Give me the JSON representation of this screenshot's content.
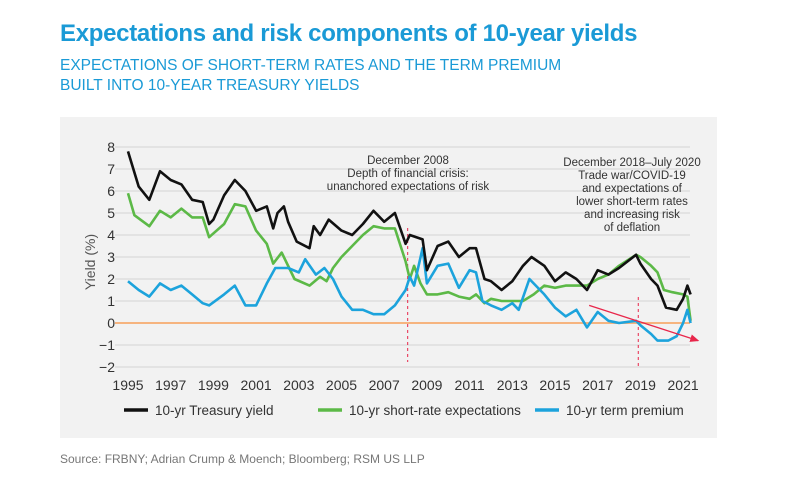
{
  "title": "Expectations and risk components of 10-year yields",
  "subtitle_line1": "EXPECTATIONS OF SHORT-TERM RATES AND THE TERM PREMIUM",
  "subtitle_line2": "BUILT INTO 10-YEAR TREASURY YIELDS",
  "source": "Source: FRBNY; Adrian Crump & Moench; Bloomberg; RSM US LLP",
  "chart_data": {
    "type": "line",
    "ylabel": "Yield (%)",
    "xlabel": "",
    "xlim": [
      1995,
      2021.4
    ],
    "ylim": [
      -2,
      8
    ],
    "grid": true,
    "legend_position": "bottom",
    "x_ticks": [
      "1995",
      "1997",
      "1999",
      "2001",
      "2003",
      "2005",
      "2007",
      "2009",
      "2011",
      "2013",
      "2015",
      "2017",
      "2019",
      "2021"
    ],
    "y_ticks": [
      "8",
      "7",
      "6",
      "5",
      "4",
      "3",
      "2",
      "1",
      "0",
      "−1",
      "−2"
    ],
    "colors": {
      "treasury": "#111111",
      "expectations": "#5cb947",
      "premium": "#1ca3dc",
      "zero_line": "#f6b47f",
      "annotation": "#e8274b"
    },
    "series": [
      {
        "name": "10-yr Treasury yield",
        "x": [
          1995.0,
          1995.5,
          1996.0,
          1996.5,
          1997.0,
          1997.5,
          1998.0,
          1998.5,
          1998.8,
          1999.0,
          1999.5,
          2000.0,
          2000.5,
          2001.0,
          2001.5,
          2001.8,
          2002.0,
          2002.3,
          2002.5,
          2002.9,
          2003.5,
          2003.7,
          2004.0,
          2004.4,
          2005.0,
          2005.5,
          2006.0,
          2006.5,
          2007.0,
          2007.5,
          2008.0,
          2008.2,
          2008.8,
          2009.0,
          2009.5,
          2010.0,
          2010.5,
          2011.0,
          2011.3,
          2011.7,
          2012.0,
          2012.5,
          2013.0,
          2013.5,
          2013.9,
          2014.5,
          2015.0,
          2015.5,
          2016.0,
          2016.5,
          2017.0,
          2017.5,
          2018.0,
          2018.8,
          2019.0,
          2019.5,
          2019.8,
          2020.2,
          2020.7,
          2021.0,
          2021.2,
          2021.35
        ],
        "y": [
          7.8,
          6.2,
          5.6,
          6.9,
          6.5,
          6.3,
          5.6,
          5.5,
          4.5,
          4.7,
          5.8,
          6.5,
          6.0,
          5.1,
          5.3,
          4.3,
          5.0,
          5.3,
          4.6,
          3.7,
          3.4,
          4.4,
          4.0,
          4.7,
          4.2,
          4.0,
          4.5,
          5.1,
          4.6,
          5.0,
          3.6,
          4.0,
          3.8,
          2.4,
          3.5,
          3.7,
          3.0,
          3.4,
          3.4,
          2.0,
          1.9,
          1.5,
          1.9,
          2.6,
          3.0,
          2.6,
          1.9,
          2.3,
          2.0,
          1.5,
          2.4,
          2.2,
          2.5,
          3.1,
          2.7,
          2.0,
          1.7,
          0.7,
          0.6,
          1.1,
          1.7,
          1.3
        ]
      },
      {
        "name": "10-yr short-rate expectations",
        "x": [
          1995.0,
          1995.3,
          1996.0,
          1996.5,
          1997.0,
          1997.5,
          1998.0,
          1998.5,
          1998.8,
          1999.5,
          2000.0,
          2000.5,
          2001.0,
          2001.5,
          2001.8,
          2002.2,
          2002.8,
          2003.5,
          2004.0,
          2004.3,
          2004.6,
          2005.0,
          2005.5,
          2006.0,
          2006.5,
          2007.0,
          2007.5,
          2008.0,
          2008.2,
          2008.4,
          2008.7,
          2009.0,
          2009.5,
          2010.0,
          2010.5,
          2011.0,
          2011.3,
          2011.7,
          2012.0,
          2012.5,
          2013.0,
          2013.5,
          2014.0,
          2014.5,
          2015.0,
          2015.5,
          2016.0,
          2016.5,
          2017.0,
          2017.5,
          2018.0,
          2018.8,
          2019.0,
          2019.5,
          2019.8,
          2020.1,
          2020.5,
          2021.0,
          2021.2,
          2021.35
        ],
        "y": [
          5.9,
          4.9,
          4.4,
          5.1,
          4.8,
          5.2,
          4.8,
          4.8,
          3.9,
          4.5,
          5.4,
          5.3,
          4.2,
          3.6,
          2.7,
          3.2,
          2.0,
          1.7,
          2.1,
          1.9,
          2.5,
          3.0,
          3.5,
          4.0,
          4.4,
          4.3,
          4.3,
          2.8,
          2.0,
          2.6,
          1.8,
          1.3,
          1.3,
          1.4,
          1.2,
          1.1,
          1.3,
          0.9,
          1.1,
          1.0,
          1.0,
          1.0,
          1.3,
          1.7,
          1.6,
          1.7,
          1.7,
          1.7,
          2.0,
          2.2,
          2.6,
          3.1,
          3.0,
          2.6,
          2.3,
          1.5,
          1.4,
          1.3,
          1.2,
          0.1
        ]
      },
      {
        "name": "10-yr term premium",
        "x": [
          1995.0,
          1995.5,
          1996.0,
          1996.5,
          1997.0,
          1997.5,
          1998.0,
          1998.5,
          1998.8,
          1999.5,
          2000.0,
          2000.5,
          2001.0,
          2001.5,
          2001.9,
          2002.5,
          2003.0,
          2003.3,
          2003.8,
          2004.2,
          2004.6,
          2005.0,
          2005.5,
          2006.0,
          2006.5,
          2007.0,
          2007.5,
          2008.0,
          2008.2,
          2008.4,
          2008.8,
          2009.0,
          2009.5,
          2010.0,
          2010.5,
          2011.0,
          2011.3,
          2011.6,
          2012.0,
          2012.5,
          2013.0,
          2013.3,
          2013.8,
          2014.5,
          2015.0,
          2015.5,
          2016.0,
          2016.5,
          2017.0,
          2017.5,
          2018.0,
          2018.8,
          2019.0,
          2019.5,
          2019.8,
          2020.3,
          2020.7,
          2021.0,
          2021.2,
          2021.35
        ],
        "y": [
          1.9,
          1.5,
          1.2,
          1.8,
          1.5,
          1.7,
          1.3,
          0.9,
          0.8,
          1.3,
          1.7,
          0.8,
          0.8,
          1.8,
          2.5,
          2.5,
          2.3,
          2.9,
          2.2,
          2.5,
          2.0,
          1.2,
          0.6,
          0.6,
          0.4,
          0.4,
          0.8,
          1.5,
          2.1,
          1.7,
          3.4,
          1.8,
          2.6,
          2.7,
          1.6,
          2.4,
          2.3,
          1.0,
          0.8,
          0.6,
          0.9,
          0.6,
          2.0,
          1.3,
          0.7,
          0.3,
          0.6,
          -0.2,
          0.5,
          0.1,
          0.0,
          0.1,
          -0.1,
          -0.5,
          -0.8,
          -0.8,
          -0.6,
          0.0,
          0.6,
          0.0
        ]
      }
    ],
    "annotations": [
      {
        "x": 2008.1,
        "lines": [
          "December 2008",
          "Depth of financial crisis:",
          "unanchored expectations of risk"
        ]
      },
      {
        "x": 2018.9,
        "lines": [
          "December 2018–July 2020",
          "Trade war/COVID-19",
          "and expectations of",
          "lower short-term rates",
          "and increasing risk",
          "of deflation"
        ]
      }
    ],
    "trend_arrow": {
      "from": [
        2016.6,
        0.8
      ],
      "to": [
        2021.7,
        -0.8
      ]
    }
  }
}
